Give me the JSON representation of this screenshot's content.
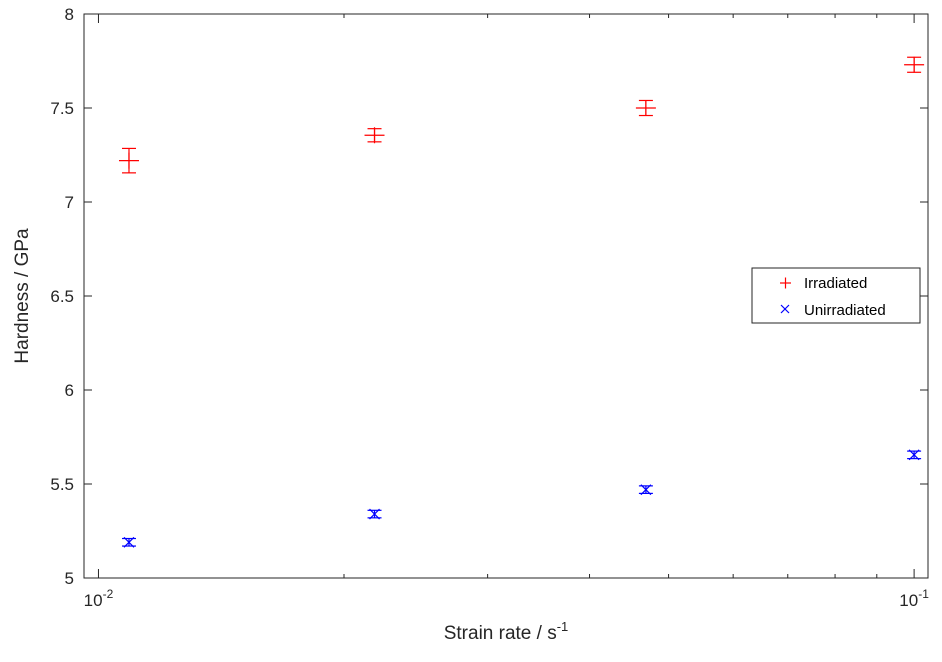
{
  "chart_data": {
    "type": "scatter",
    "x_scale": "log",
    "xlim": [
      0.0096,
      0.104
    ],
    "ylim": [
      5,
      8
    ],
    "x_ticks": [
      0.01,
      0.1
    ],
    "x_tick_labels": [
      {
        "base": "10",
        "exp": "-2"
      },
      {
        "base": "10",
        "exp": "-1"
      }
    ],
    "y_ticks": [
      5,
      5.5,
      6,
      6.5,
      7,
      7.5,
      8
    ],
    "y_tick_labels": [
      "5",
      "5.5",
      "6",
      "6.5",
      "7",
      "7.5",
      "8"
    ],
    "xlabel": {
      "text": "Strain rate / s",
      "sup": "-1"
    },
    "ylabel": "Hardness / GPa",
    "grid": false,
    "legend_position": "right",
    "series": [
      {
        "name": "Irradiated",
        "marker": "plus",
        "color": "#ff0000",
        "x": [
          0.0109,
          0.0218,
          0.0469,
          0.1
        ],
        "y": [
          7.22,
          7.355,
          7.5,
          7.73
        ],
        "err": [
          0.065,
          0.035,
          0.04,
          0.04
        ]
      },
      {
        "name": "Unirradiated",
        "marker": "x",
        "color": "#0000ff",
        "x": [
          0.0109,
          0.0218,
          0.0469,
          0.1
        ],
        "y": [
          5.19,
          5.34,
          5.47,
          5.655
        ],
        "err": [
          0.02,
          0.02,
          0.02,
          0.02
        ]
      }
    ]
  }
}
